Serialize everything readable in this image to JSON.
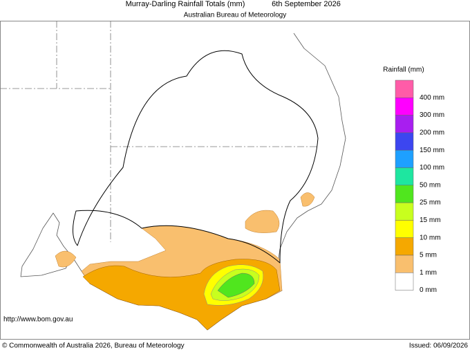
{
  "header": {
    "title": "Murray-Darling Rainfall Totals (mm)",
    "date": "6th September 2026",
    "subtitle": "Australian Bureau of Meteorology"
  },
  "legend": {
    "title": "Rainfall (mm)",
    "items": [
      {
        "label": "400 mm",
        "color": "#ff5ca8"
      },
      {
        "label": "300 mm",
        "color": "#ff00ff"
      },
      {
        "label": "200 mm",
        "color": "#a81ef0"
      },
      {
        "label": "150 mm",
        "color": "#3c46f0"
      },
      {
        "label": "100 mm",
        "color": "#1ea0ff"
      },
      {
        "label": "50 mm",
        "color": "#1ee6a0"
      },
      {
        "label": "25 mm",
        "color": "#50e61e"
      },
      {
        "label": "15 mm",
        "color": "#c8ff1e"
      },
      {
        "label": "10 mm",
        "color": "#ffff00"
      },
      {
        "label": "5 mm",
        "color": "#f5a800"
      },
      {
        "label": "1 mm",
        "color": "#f9bf6e"
      },
      {
        "label": "0 mm",
        "color": "#ffffff"
      }
    ]
  },
  "footer": {
    "url": "http://www.bom.gov.au",
    "copyright": "© Commonwealth of Australia 2026, Bureau of Meteorology",
    "issued": "Issued: 06/09/2026"
  }
}
